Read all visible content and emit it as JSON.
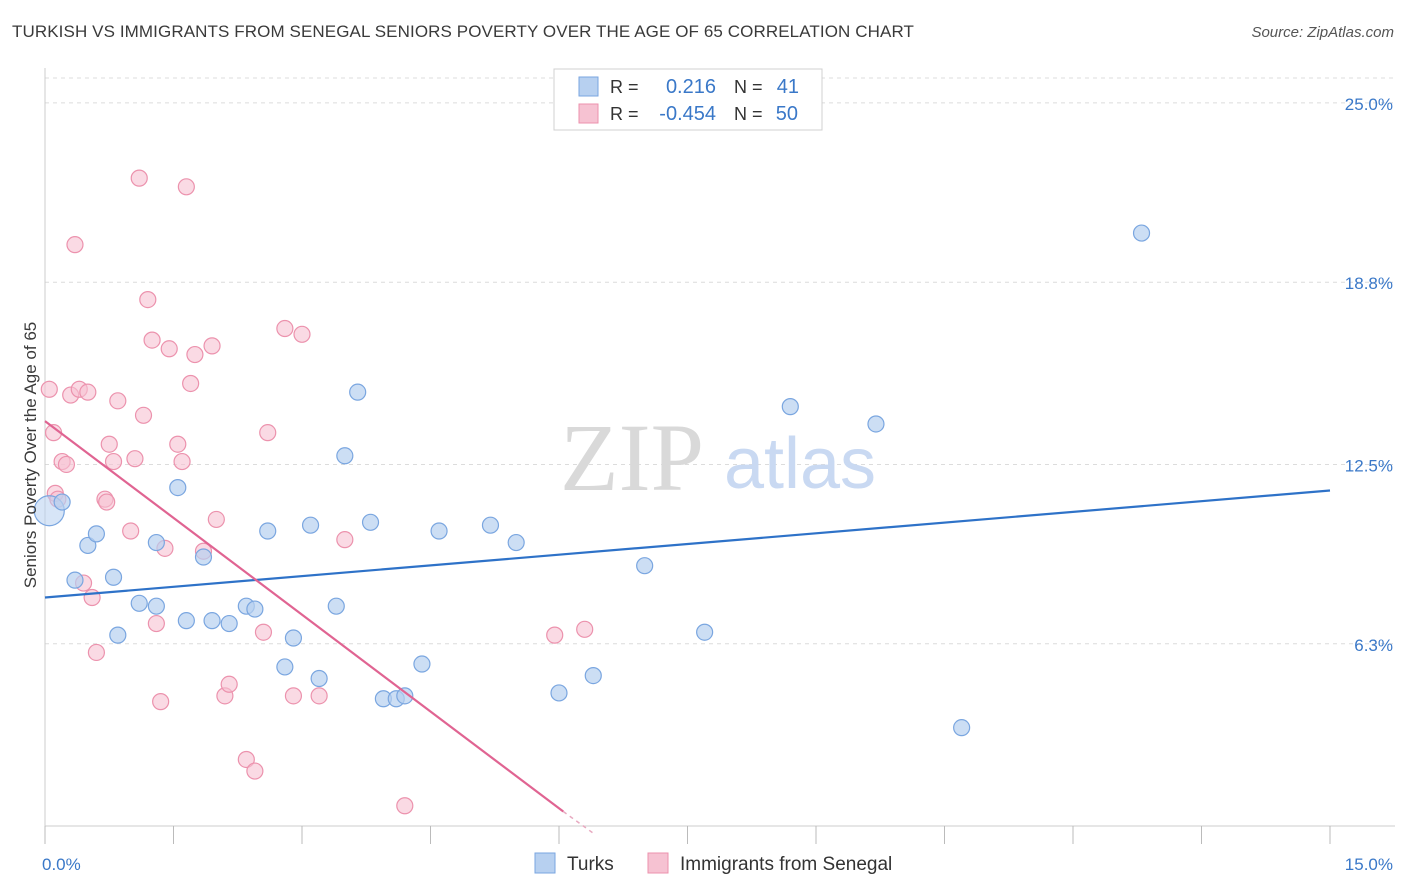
{
  "header": {
    "title": "TURKISH VS IMMIGRANTS FROM SENEGAL SENIORS POVERTY OVER THE AGE OF 65 CORRELATION CHART",
    "source": "Source: ZipAtlas.com"
  },
  "watermark": {
    "zip": "ZIP",
    "atlas": "atlas"
  },
  "legend_box": {
    "row1": {
      "r_label": "R =",
      "r_value": "0.216",
      "n_label": "N =",
      "n_value": "41"
    },
    "row2": {
      "r_label": "R =",
      "r_value": "-0.454",
      "n_label": "N =",
      "n_value": "50"
    }
  },
  "colors": {
    "turks_fill": "#b7d0f0",
    "turks_stroke": "#7aa6e0",
    "turks_line": "#2e72c8",
    "senegal_fill": "#f6c2d2",
    "senegal_stroke": "#ec92ad",
    "senegal_line": "#e06492",
    "tick_label": "#3a78c8",
    "grid": "#dcdcdc"
  },
  "chart_data": {
    "type": "scatter",
    "title": "TURKISH VS IMMIGRANTS FROM SENEGAL SENIORS POVERTY OVER THE AGE OF 65 CORRELATION CHART",
    "xlabel": "",
    "ylabel": "Seniors Poverty Over the Age of 65",
    "xlim": [
      0,
      15
    ],
    "ylim": [
      0,
      26
    ],
    "x_tick_labels": [
      "0.0%",
      "15.0%"
    ],
    "y_ticks": [
      6.3,
      12.5,
      18.8,
      25.0
    ],
    "y_tick_labels": [
      "6.3%",
      "12.5%",
      "18.8%",
      "25.0%"
    ],
    "grid": true,
    "legend_position": "bottom-center",
    "series": [
      {
        "name": "Turks",
        "r": 0.216,
        "n": 41,
        "trend": {
          "x": [
            0,
            15
          ],
          "y": [
            7.9,
            11.6
          ]
        },
        "points": [
          [
            0.05,
            10.9
          ],
          [
            0.2,
            11.2
          ],
          [
            0.35,
            8.5
          ],
          [
            0.5,
            9.7
          ],
          [
            0.6,
            10.1
          ],
          [
            0.8,
            8.6
          ],
          [
            0.85,
            6.6
          ],
          [
            1.1,
            7.7
          ],
          [
            1.3,
            9.8
          ],
          [
            1.3,
            7.6
          ],
          [
            1.55,
            11.7
          ],
          [
            1.65,
            7.1
          ],
          [
            1.85,
            9.3
          ],
          [
            1.95,
            7.1
          ],
          [
            2.15,
            7.0
          ],
          [
            2.35,
            7.6
          ],
          [
            2.45,
            7.5
          ],
          [
            2.6,
            10.2
          ],
          [
            2.8,
            5.5
          ],
          [
            2.9,
            6.5
          ],
          [
            3.1,
            10.4
          ],
          [
            3.2,
            5.1
          ],
          [
            3.4,
            7.6
          ],
          [
            3.5,
            12.8
          ],
          [
            3.65,
            15.0
          ],
          [
            3.8,
            10.5
          ],
          [
            3.95,
            4.4
          ],
          [
            4.1,
            4.4
          ],
          [
            4.2,
            4.5
          ],
          [
            4.4,
            5.6
          ],
          [
            4.6,
            10.2
          ],
          [
            5.2,
            10.4
          ],
          [
            5.5,
            9.8
          ],
          [
            6.0,
            4.6
          ],
          [
            6.4,
            5.2
          ],
          [
            7.0,
            9.0
          ],
          [
            7.7,
            6.7
          ],
          [
            8.7,
            14.5
          ],
          [
            9.7,
            13.9
          ],
          [
            10.7,
            3.4
          ],
          [
            12.8,
            20.5
          ]
        ]
      },
      {
        "name": "Immigrants from Senegal",
        "r": -0.454,
        "n": 50,
        "trend": {
          "x": [
            0,
            6.05
          ],
          "y": [
            14.0,
            0.5
          ]
        },
        "points": [
          [
            0.05,
            15.1
          ],
          [
            0.1,
            13.6
          ],
          [
            0.12,
            11.5
          ],
          [
            0.15,
            11.3
          ],
          [
            0.2,
            12.6
          ],
          [
            0.25,
            12.5
          ],
          [
            0.3,
            14.9
          ],
          [
            0.35,
            20.1
          ],
          [
            0.4,
            15.1
          ],
          [
            0.45,
            8.4
          ],
          [
            0.5,
            15.0
          ],
          [
            0.55,
            7.9
          ],
          [
            0.6,
            6.0
          ],
          [
            0.7,
            11.3
          ],
          [
            0.72,
            11.2
          ],
          [
            0.75,
            13.2
          ],
          [
            0.8,
            12.6
          ],
          [
            0.85,
            14.7
          ],
          [
            1.0,
            10.2
          ],
          [
            1.05,
            12.7
          ],
          [
            1.1,
            22.4
          ],
          [
            1.15,
            14.2
          ],
          [
            1.2,
            18.2
          ],
          [
            1.25,
            16.8
          ],
          [
            1.3,
            7.0
          ],
          [
            1.35,
            4.3
          ],
          [
            1.4,
            9.6
          ],
          [
            1.45,
            16.5
          ],
          [
            1.55,
            13.2
          ],
          [
            1.6,
            12.6
          ],
          [
            1.65,
            22.1
          ],
          [
            1.7,
            15.3
          ],
          [
            1.75,
            16.3
          ],
          [
            1.85,
            9.5
          ],
          [
            1.95,
            16.6
          ],
          [
            2.0,
            10.6
          ],
          [
            2.1,
            4.5
          ],
          [
            2.15,
            4.9
          ],
          [
            2.35,
            2.3
          ],
          [
            2.45,
            1.9
          ],
          [
            2.55,
            6.7
          ],
          [
            2.6,
            13.6
          ],
          [
            2.8,
            17.2
          ],
          [
            2.9,
            4.5
          ],
          [
            3.0,
            17.0
          ],
          [
            3.2,
            4.5
          ],
          [
            3.5,
            9.9
          ],
          [
            4.2,
            0.7
          ],
          [
            5.95,
            6.6
          ],
          [
            6.3,
            6.8
          ]
        ]
      }
    ]
  }
}
